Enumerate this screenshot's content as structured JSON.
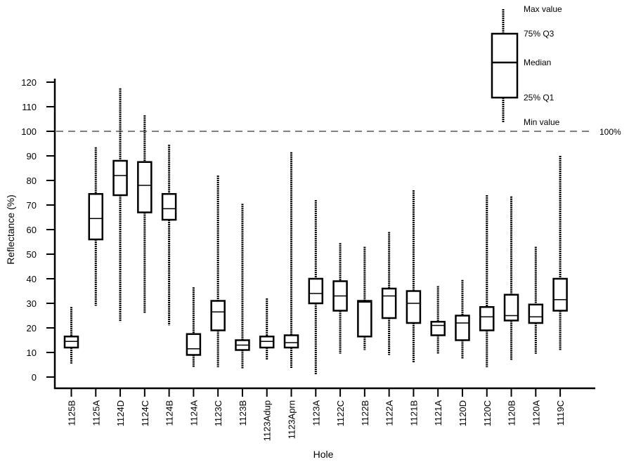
{
  "chart_data": {
    "type": "boxplot",
    "xlabel": "Hole",
    "ylabel": "Reflectance (%)",
    "ylim": [
      0,
      120
    ],
    "yticks": [
      0,
      10,
      20,
      30,
      40,
      50,
      60,
      70,
      80,
      90,
      100,
      110,
      120
    ],
    "reference_line": {
      "value": 100,
      "label": "100%"
    },
    "legend": {
      "max_label": "Max value",
      "q3_label": "75% Q3",
      "median_label": "Median",
      "q1_label": "25% Q1",
      "min_label": "Min value"
    },
    "categories": [
      "1125B",
      "1125A",
      "1124D",
      "1124C",
      "1124B",
      "1124A",
      "1123C",
      "1123B",
      "1123Adup",
      "1123Aprn",
      "1123A",
      "1122C",
      "1122B",
      "1122A",
      "1121B",
      "1121A",
      "1120D",
      "1120C",
      "1120B",
      "1120A",
      "1119C"
    ],
    "boxes": [
      {
        "min": 5.5,
        "q1": 12,
        "median": 14.5,
        "q3": 16.5,
        "max": 28.5
      },
      {
        "min": 29,
        "q1": 56,
        "median": 64.5,
        "q3": 74.5,
        "max": 93.5
      },
      {
        "min": 22.5,
        "q1": 74,
        "median": 82,
        "q3": 88,
        "max": 117.5
      },
      {
        "min": 26,
        "q1": 67,
        "median": 78,
        "q3": 87.5,
        "max": 106.5
      },
      {
        "min": 21,
        "q1": 64,
        "median": 68.5,
        "q3": 74.5,
        "max": 94.5
      },
      {
        "min": 4,
        "q1": 9,
        "median": 11.5,
        "q3": 17.5,
        "max": 36.5
      },
      {
        "min": 4,
        "q1": 19,
        "median": 26.5,
        "q3": 31,
        "max": 82
      },
      {
        "min": 3.5,
        "q1": 11,
        "median": 13,
        "q3": 15,
        "max": 70.5
      },
      {
        "min": 7,
        "q1": 12,
        "median": 14.5,
        "q3": 16.5,
        "max": 32
      },
      {
        "min": 3.5,
        "q1": 12,
        "median": 14,
        "q3": 17,
        "max": 91.5
      },
      {
        "min": 1,
        "q1": 30,
        "median": 34,
        "q3": 40,
        "max": 72
      },
      {
        "min": 9.5,
        "q1": 27,
        "median": 33,
        "q3": 39,
        "max": 54.5
      },
      {
        "min": 11,
        "q1": 16.5,
        "median": 30.5,
        "q3": 31,
        "max": 53
      },
      {
        "min": 9,
        "q1": 24,
        "median": 33,
        "q3": 36,
        "max": 59
      },
      {
        "min": 6,
        "q1": 22,
        "median": 30,
        "q3": 35,
        "max": 76
      },
      {
        "min": 9.5,
        "q1": 17,
        "median": 21,
        "q3": 22.5,
        "max": 37
      },
      {
        "min": 7.5,
        "q1": 15,
        "median": 22,
        "q3": 25,
        "max": 39.5
      },
      {
        "min": 4,
        "q1": 19,
        "median": 24.5,
        "q3": 28.5,
        "max": 74
      },
      {
        "min": 7,
        "q1": 23,
        "median": 25,
        "q3": 33.5,
        "max": 73.5
      },
      {
        "min": 9.5,
        "q1": 22,
        "median": 24.5,
        "q3": 29.5,
        "max": 53
      },
      {
        "min": 11,
        "q1": 27,
        "median": 31.5,
        "q3": 40,
        "max": 90
      }
    ]
  }
}
